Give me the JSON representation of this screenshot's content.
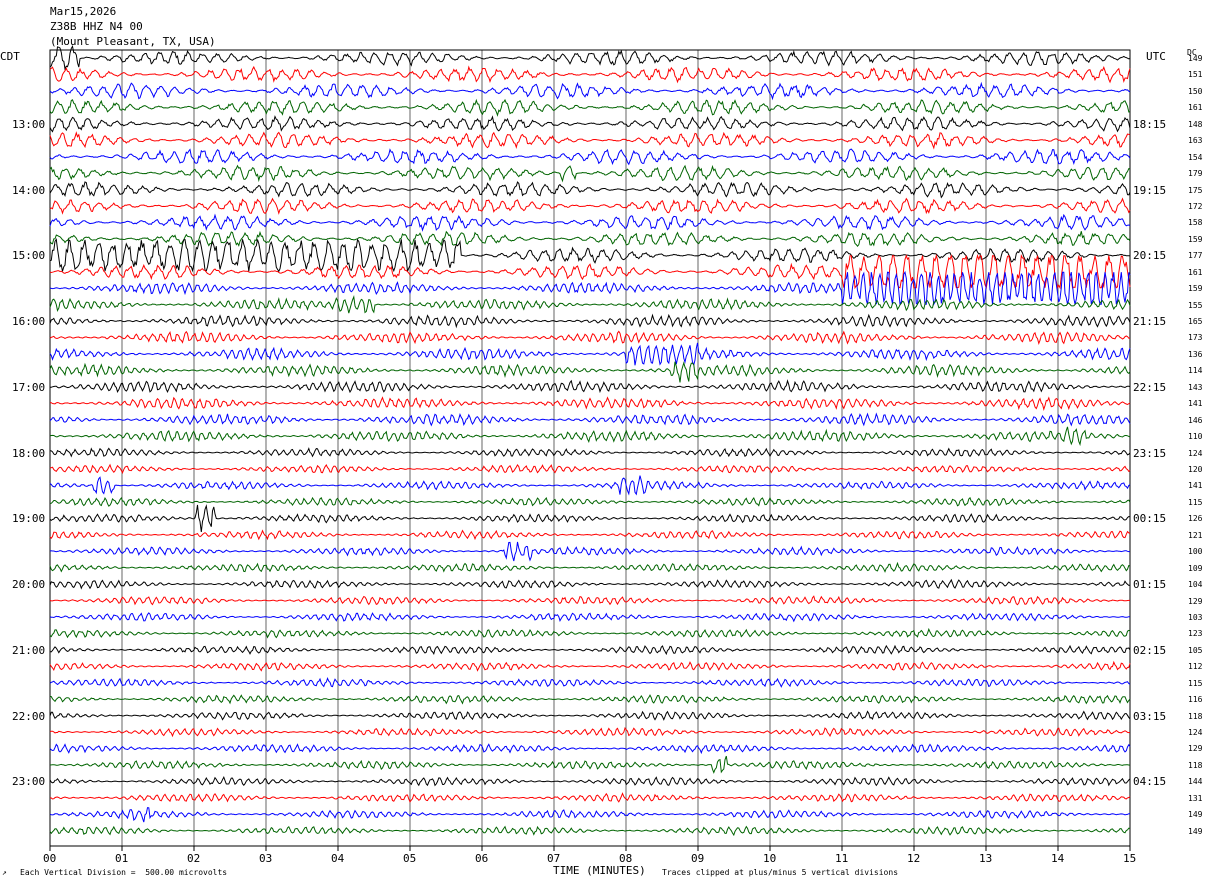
{
  "header": {
    "date": "Mar15,2026",
    "station": "Z38B HHZ N4 00",
    "location": "(Mount Pleasant, TX, USA)"
  },
  "left_tz": "CDT",
  "right_tz": "UTC",
  "dc_label": "DC",
  "footer": {
    "scale_note": "Each Vertical Division =  500.00 microvolts",
    "clip_note": "Traces clipped at plus/minus 5 vertical divisions",
    "corner_mark": "↗"
  },
  "colors": {
    "trace_cycle": [
      "#000000",
      "#ff0000",
      "#0000ff",
      "#006400"
    ],
    "grid": "#000000"
  },
  "chart_data": {
    "type": "line",
    "title": "",
    "xlabel": "TIME (MINUTES)",
    "ylabel": "",
    "xlim": [
      0,
      15
    ],
    "x_ticks": [
      "00",
      "01",
      "02",
      "03",
      "04",
      "05",
      "06",
      "07",
      "08",
      "09",
      "10",
      "11",
      "12",
      "13",
      "14",
      "15"
    ],
    "rows_per_hour": 4,
    "left_hour_labels": [
      "13:00",
      "14:00",
      "15:00",
      "16:00",
      "17:00",
      "18:00",
      "19:00",
      "20:00",
      "21:00",
      "22:00",
      "23:00"
    ],
    "right_hour_labels": [
      "18:15",
      "19:15",
      "20:15",
      "21:15",
      "22:15",
      "23:15",
      "00:15",
      "01:15",
      "02:15",
      "03:15",
      "04:15"
    ],
    "dc_offsets": [
      149,
      151,
      150,
      161,
      148,
      163,
      154,
      179,
      175,
      172,
      158,
      159,
      177,
      161,
      159,
      155,
      165,
      173,
      136,
      114,
      143,
      141,
      146,
      110,
      124,
      120,
      141,
      115,
      126,
      121,
      100,
      109,
      104,
      129,
      103,
      123,
      105,
      112,
      115,
      116,
      118,
      124,
      129,
      118,
      144,
      131,
      149,
      149
    ]
  }
}
